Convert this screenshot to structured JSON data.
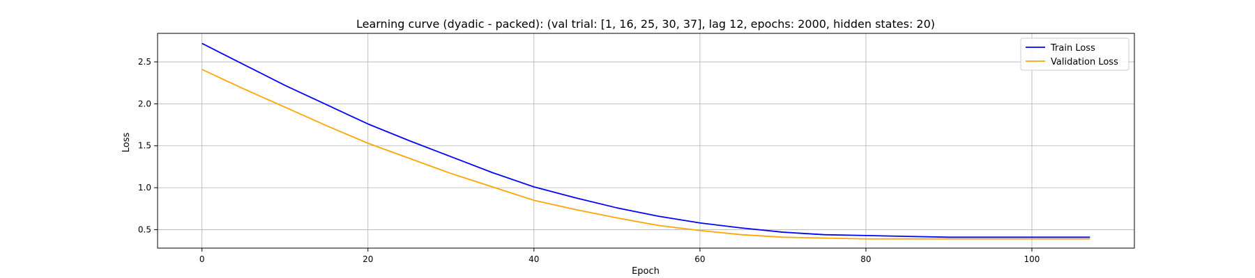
{
  "chart_data": {
    "type": "line",
    "title": "Learning curve (dyadic - packed): (val trial: [1, 16, 25, 30, 37], lag 12, epochs: 2000, hidden states: 20)",
    "xlabel": "Epoch",
    "ylabel": "Loss",
    "xlim": [
      -5.35,
      112.35
    ],
    "ylim": [
      0.28,
      2.84
    ],
    "xticks": [
      0,
      20,
      40,
      60,
      80,
      100
    ],
    "xtick_labels": [
      "0",
      "20",
      "40",
      "60",
      "80",
      "100"
    ],
    "yticks": [
      0.5,
      1.0,
      1.5,
      2.0,
      2.5
    ],
    "ytick_labels": [
      "0.5",
      "1.0",
      "1.5",
      "2.0",
      "2.5"
    ],
    "grid": true,
    "legend_position": "top-right",
    "series": [
      {
        "name": "Train Loss",
        "color": "#0000ff",
        "x": [
          0,
          5,
          10,
          15,
          20,
          25,
          30,
          35,
          40,
          45,
          50,
          55,
          60,
          65,
          70,
          75,
          80,
          85,
          90,
          95,
          100,
          107
        ],
        "values": [
          2.72,
          2.47,
          2.22,
          1.99,
          1.76,
          1.56,
          1.37,
          1.18,
          1.01,
          0.88,
          0.76,
          0.66,
          0.58,
          0.52,
          0.47,
          0.44,
          0.43,
          0.42,
          0.41,
          0.41,
          0.41,
          0.41
        ]
      },
      {
        "name": "Validation Loss",
        "color": "#ffa500",
        "x": [
          0,
          5,
          10,
          15,
          20,
          25,
          30,
          35,
          40,
          45,
          50,
          55,
          60,
          65,
          70,
          75,
          80,
          85,
          90,
          95,
          100,
          107
        ],
        "values": [
          2.41,
          2.18,
          1.96,
          1.74,
          1.53,
          1.35,
          1.17,
          1.01,
          0.85,
          0.74,
          0.64,
          0.55,
          0.49,
          0.44,
          0.41,
          0.4,
          0.39,
          0.39,
          0.39,
          0.39,
          0.39,
          0.39
        ]
      }
    ]
  }
}
